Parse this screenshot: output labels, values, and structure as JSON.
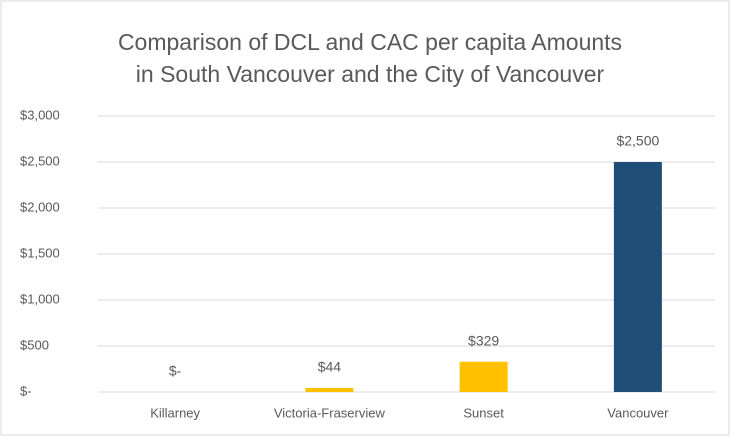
{
  "chart_data": {
    "type": "bar",
    "title": [
      "Comparison of DCL and CAC per capita Amounts",
      "in South Vancouver and the City of Vancouver"
    ],
    "categories": [
      "Killarney",
      "Victoria-Fraserview",
      "Sunset",
      "Vancouver"
    ],
    "values": [
      0,
      44,
      329,
      2500
    ],
    "value_labels": [
      "$-",
      "$44",
      "$329",
      "$2,500"
    ],
    "colors": [
      "#FFC000",
      "#FFC000",
      "#FFC000",
      "#1F4E79"
    ],
    "ylim": [
      0,
      3000
    ],
    "yticks": [
      {
        "value": 0,
        "label": "$-"
      },
      {
        "value": 500,
        "label": "$500"
      },
      {
        "value": 1000,
        "label": "$1,000"
      },
      {
        "value": 1500,
        "label": "$1,500"
      },
      {
        "value": 2000,
        "label": "$2,000"
      },
      {
        "value": 2500,
        "label": "$2,500"
      },
      {
        "value": 3000,
        "label": "$3,000"
      }
    ],
    "grid": true
  }
}
